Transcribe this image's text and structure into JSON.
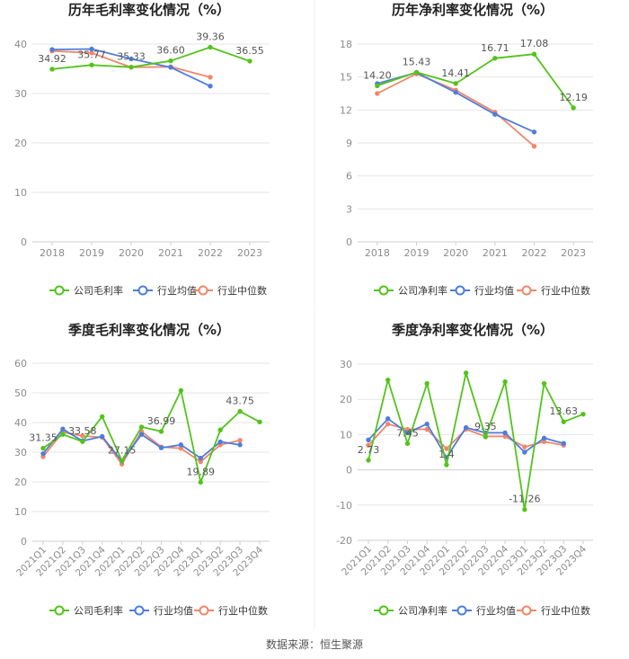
{
  "source_text": "数据来源：恒生聚源",
  "colors": {
    "company": "#52c41a",
    "industry_avg": "#4e7ddc",
    "industry_median": "#f0876b",
    "grid": "#e6e6e6",
    "axis_text": "#8c8c8c",
    "label_text": "#555555",
    "title_text": "#222222"
  },
  "chart_data": [
    {
      "type": "line",
      "title": "历年毛利率变化情况（%）",
      "categories": [
        "2018",
        "2019",
        "2020",
        "2021",
        "2022",
        "2023"
      ],
      "ylim": [
        0,
        40
      ],
      "yticks": [
        0,
        10,
        20,
        30,
        40
      ],
      "legend": [
        "公司毛利率",
        "行业均值",
        "行业中位数"
      ],
      "series": [
        {
          "name": "公司毛利率",
          "role": "company",
          "values": [
            34.92,
            35.77,
            35.33,
            36.6,
            39.36,
            36.55
          ]
        },
        {
          "name": "行业均值",
          "role": "avg",
          "values": [
            38.9,
            39.0,
            37.0,
            35.3,
            31.5,
            null
          ]
        },
        {
          "name": "行业中位数",
          "role": "median",
          "values": [
            38.6,
            38.2,
            35.3,
            35.4,
            33.3,
            null
          ]
        }
      ],
      "data_labels": [
        {
          "index": 0,
          "text": "34.92",
          "pos": "above"
        },
        {
          "index": 1,
          "text": "35.77",
          "pos": "above"
        },
        {
          "index": 2,
          "text": "35.33",
          "pos": "above"
        },
        {
          "index": 3,
          "text": "36.60",
          "pos": "above"
        },
        {
          "index": 4,
          "text": "39.36",
          "pos": "above"
        },
        {
          "index": 5,
          "text": "36.55",
          "pos": "above"
        }
      ]
    },
    {
      "type": "line",
      "title": "历年净利率变化情况（%）",
      "categories": [
        "2018",
        "2019",
        "2020",
        "2021",
        "2022",
        "2023"
      ],
      "ylim": [
        0,
        18
      ],
      "yticks": [
        0,
        3,
        6,
        9,
        12,
        15,
        18
      ],
      "legend": [
        "公司净利率",
        "行业均值",
        "行业中位数"
      ],
      "series": [
        {
          "name": "公司净利率",
          "role": "company",
          "values": [
            14.2,
            15.43,
            14.41,
            16.71,
            17.08,
            12.19
          ]
        },
        {
          "name": "行业均值",
          "role": "avg",
          "values": [
            14.4,
            15.4,
            13.6,
            11.6,
            10.0,
            null
          ]
        },
        {
          "name": "行业中位数",
          "role": "median",
          "values": [
            13.5,
            15.3,
            13.8,
            11.8,
            8.7,
            null
          ]
        }
      ],
      "data_labels": [
        {
          "index": 0,
          "text": "14.20",
          "pos": "above"
        },
        {
          "index": 1,
          "text": "15.43",
          "pos": "above"
        },
        {
          "index": 2,
          "text": "14.41",
          "pos": "above"
        },
        {
          "index": 3,
          "text": "16.71",
          "pos": "above"
        },
        {
          "index": 4,
          "text": "17.08",
          "pos": "above"
        },
        {
          "index": 5,
          "text": "12.19",
          "pos": "above"
        }
      ]
    },
    {
      "type": "line",
      "title": "季度毛利率变化情况（%）",
      "categories": [
        "2021Q1",
        "2021Q2",
        "2021Q3",
        "2021Q4",
        "2022Q1",
        "2022Q2",
        "2022Q3",
        "2022Q4",
        "2023Q1",
        "2023Q2",
        "2023Q3",
        "2023Q4"
      ],
      "ylim": [
        0,
        60
      ],
      "yticks": [
        0,
        10,
        20,
        30,
        40,
        50,
        60
      ],
      "legend": [
        "公司毛利率",
        "行业均值",
        "行业中位数"
      ],
      "series": [
        {
          "name": "公司毛利率",
          "role": "company",
          "values": [
            31.35,
            36.0,
            33.58,
            42.0,
            27.15,
            38.5,
            36.99,
            50.8,
            19.89,
            37.5,
            43.75,
            40.2
          ]
        },
        {
          "name": "行业均值",
          "role": "avg",
          "values": [
            29.5,
            37.8,
            33.8,
            35.3,
            27.0,
            36.0,
            31.5,
            32.5,
            28.0,
            33.5,
            32.5,
            null
          ]
        },
        {
          "name": "行业中位数",
          "role": "median",
          "values": [
            28.5,
            36.8,
            35.5,
            35.0,
            26.0,
            37.0,
            31.8,
            31.3,
            26.8,
            32.5,
            34.0,
            null
          ]
        }
      ],
      "data_labels": [
        {
          "index": 0,
          "text": "31.35",
          "pos": "above"
        },
        {
          "index": 2,
          "text": "33.58",
          "pos": "above"
        },
        {
          "index": 4,
          "text": "27.15",
          "pos": "above"
        },
        {
          "index": 6,
          "text": "36.99",
          "pos": "above"
        },
        {
          "index": 8,
          "text": "19.89",
          "pos": "above"
        },
        {
          "index": 10,
          "text": "43.75",
          "pos": "above"
        }
      ]
    },
    {
      "type": "line",
      "title": "季度净利率变化情况（%）",
      "categories": [
        "2021Q1",
        "2021Q2",
        "2021Q3",
        "2021Q4",
        "2022Q1",
        "2022Q2",
        "2022Q3",
        "2022Q4",
        "2023Q1",
        "2023Q2",
        "2023Q3",
        "2023Q4"
      ],
      "ylim": [
        -20,
        30
      ],
      "yticks": [
        -20,
        -10,
        0,
        10,
        20,
        30
      ],
      "legend": [
        "公司净利率",
        "行业均值",
        "行业中位数"
      ],
      "series": [
        {
          "name": "公司净利率",
          "role": "company",
          "values": [
            2.73,
            25.5,
            7.45,
            24.5,
            1.4,
            27.5,
            9.35,
            25.0,
            -11.26,
            24.5,
            13.63,
            15.8
          ]
        },
        {
          "name": "行业均值",
          "role": "avg",
          "values": [
            8.5,
            14.5,
            10.5,
            13.0,
            3.5,
            12.0,
            10.5,
            10.5,
            5.0,
            9.0,
            7.5,
            null
          ]
        },
        {
          "name": "行业中位数",
          "role": "median",
          "values": [
            7.0,
            13.0,
            11.5,
            11.5,
            6.0,
            11.5,
            9.5,
            9.5,
            6.5,
            8.0,
            7.0,
            null
          ]
        }
      ],
      "data_labels": [
        {
          "index": 0,
          "text": "2.73",
          "pos": "above"
        },
        {
          "index": 2,
          "text": "7.45",
          "pos": "above"
        },
        {
          "index": 4,
          "text": "1.4",
          "pos": "above"
        },
        {
          "index": 6,
          "text": "9.35",
          "pos": "above"
        },
        {
          "index": 8,
          "text": "-11.26",
          "pos": "above"
        },
        {
          "index": 10,
          "text": "13.63",
          "pos": "above"
        }
      ]
    }
  ]
}
